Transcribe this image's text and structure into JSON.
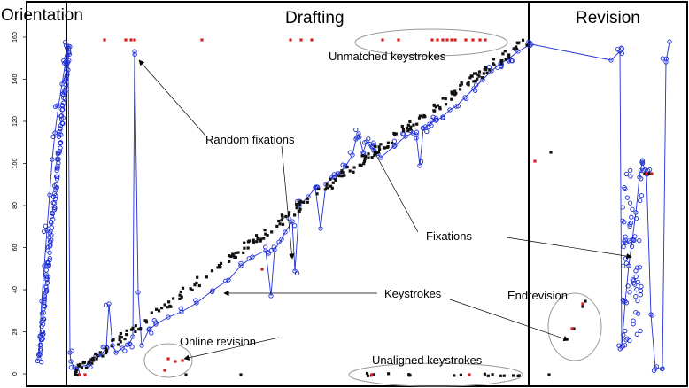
{
  "phases": {
    "orientation": "Orientation",
    "drafting": "Drafting",
    "revision": "Revision"
  },
  "annotations": {
    "unmatched_keystrokes": "Unmatched keystrokes",
    "random_fixations": "Random fixations",
    "fixations": "Fixations",
    "keystrokes": "Keystrokes",
    "end_revision": "Endrevision",
    "online_revision": "Online revision",
    "unaligned_keystrokes": "Unaligned keystrokes"
  },
  "y_axis": {
    "ticks": [
      "0",
      "20",
      "40",
      "60",
      "80",
      "100",
      "120",
      "140",
      "160"
    ],
    "range": [
      0,
      160
    ]
  },
  "colors": {
    "fixation": "#1f2fd6",
    "keystroke": "#111111",
    "unmatched": "#d42020",
    "frame": "#000000",
    "ellipse": "#9a9a9a"
  }
}
